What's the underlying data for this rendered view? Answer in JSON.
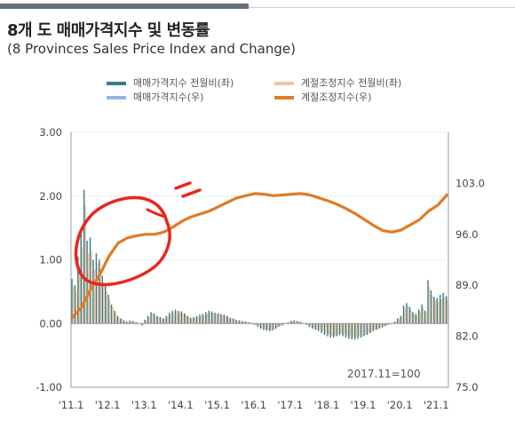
{
  "title": "8개 도 매매가격지수 및 변동률",
  "subtitle": "(8 Provinces Sales Price Index and Change)",
  "colors": {
    "mom_raw": "#3a7d8c",
    "index_raw": "#8fb8e8",
    "mom_sa": "#f3c49b",
    "index_sa": "#e07b26",
    "annotation": "#e8271d"
  },
  "chart_data": {
    "type": "bar+line",
    "legend": [
      {
        "key": "mom_raw",
        "label": "매매가격지수 전월비(좌)"
      },
      {
        "key": "mom_sa",
        "label": "계절조정지수 전월비(좌)"
      },
      {
        "key": "index_raw",
        "label": "매매가격지수(우)"
      },
      {
        "key": "index_sa",
        "label": "계절조정지수(우)"
      }
    ],
    "x_tick_labels": [
      "'11.1",
      "'12.1",
      "'13.1",
      "'14.1",
      "'15.1",
      "'16.1",
      "'17.1",
      "'18.1",
      "'19.1",
      "'20.1",
      "'21.1"
    ],
    "y_left": {
      "ylim": [
        -1.0,
        3.0
      ],
      "ticks": [
        "3.00",
        "2.00",
        "1.00",
        "0.00",
        "-1.00"
      ]
    },
    "y_right": {
      "ylim": [
        75.0,
        110.0
      ],
      "ticks": [
        "103.0",
        "96.0",
        "89.0",
        "82.0",
        "75.0"
      ]
    },
    "note": "2017.11=100",
    "period": {
      "start_year": 2011,
      "start_month": 1,
      "months": 124
    },
    "series": [
      {
        "name": "매매가격지수 전월비(좌)",
        "axis": "left",
        "kind": "bar",
        "values": [
          0.7,
          0.6,
          1.05,
          1.4,
          2.1,
          1.3,
          1.35,
          1.0,
          1.1,
          1.0,
          0.75,
          0.6,
          0.45,
          0.3,
          0.2,
          0.12,
          0.08,
          0.05,
          0.03,
          0.05,
          0.04,
          0.02,
          0.0,
          -0.03,
          0.06,
          0.12,
          0.18,
          0.16,
          0.12,
          0.1,
          0.08,
          0.12,
          0.17,
          0.2,
          0.22,
          0.2,
          0.19,
          0.16,
          0.12,
          0.09,
          0.1,
          0.12,
          0.14,
          0.15,
          0.18,
          0.2,
          0.19,
          0.17,
          0.16,
          0.15,
          0.14,
          0.12,
          0.09,
          0.08,
          0.06,
          0.05,
          0.04,
          0.03,
          0.02,
          0.01,
          -0.02,
          -0.05,
          -0.08,
          -0.1,
          -0.11,
          -0.12,
          -0.11,
          -0.08,
          -0.05,
          -0.03,
          0.0,
          0.02,
          0.04,
          0.05,
          0.04,
          0.03,
          0.01,
          -0.02,
          -0.05,
          -0.08,
          -0.1,
          -0.12,
          -0.15,
          -0.18,
          -0.2,
          -0.22,
          -0.22,
          -0.2,
          -0.18,
          -0.2,
          -0.22,
          -0.24,
          -0.25,
          -0.25,
          -0.24,
          -0.22,
          -0.2,
          -0.18,
          -0.15,
          -0.12,
          -0.1,
          -0.08,
          -0.06,
          -0.04,
          -0.02,
          0.0,
          0.03,
          0.08,
          0.12,
          0.28,
          0.32,
          0.26,
          0.18,
          0.15,
          0.22,
          0.3,
          0.2,
          0.68,
          0.52,
          0.42,
          0.4,
          0.45,
          0.48,
          0.43
        ]
      },
      {
        "name": "계절조정지수 전월비(좌)",
        "axis": "left",
        "kind": "bar",
        "values": [
          0.58,
          0.5,
          0.9,
          1.2,
          1.85,
          1.1,
          1.15,
          0.85,
          0.95,
          0.86,
          0.64,
          0.5,
          0.38,
          0.26,
          0.17,
          0.1,
          0.07,
          0.04,
          0.02,
          0.04,
          0.03,
          0.02,
          0.0,
          -0.02,
          0.05,
          0.1,
          0.15,
          0.14,
          0.1,
          0.09,
          0.07,
          0.1,
          0.14,
          0.17,
          0.19,
          0.17,
          0.16,
          0.14,
          0.1,
          0.08,
          0.09,
          0.1,
          0.12,
          0.13,
          0.15,
          0.17,
          0.16,
          0.15,
          0.14,
          0.13,
          0.12,
          0.1,
          0.08,
          0.07,
          0.05,
          0.04,
          0.03,
          0.03,
          0.02,
          0.01,
          -0.02,
          -0.04,
          -0.07,
          -0.09,
          -0.1,
          -0.1,
          -0.09,
          -0.07,
          -0.04,
          -0.03,
          0.0,
          0.02,
          0.03,
          0.04,
          0.03,
          0.03,
          0.01,
          -0.02,
          -0.04,
          -0.07,
          -0.09,
          -0.1,
          -0.13,
          -0.15,
          -0.17,
          -0.19,
          -0.19,
          -0.17,
          -0.15,
          -0.17,
          -0.19,
          -0.2,
          -0.21,
          -0.21,
          -0.2,
          -0.19,
          -0.17,
          -0.15,
          -0.13,
          -0.1,
          -0.09,
          -0.07,
          -0.05,
          -0.03,
          -0.02,
          0.0,
          0.03,
          0.07,
          0.1,
          0.24,
          0.27,
          0.22,
          0.15,
          0.13,
          0.19,
          0.26,
          0.17,
          0.58,
          0.44,
          0.36,
          0.34,
          0.38,
          0.41,
          0.37
        ]
      },
      {
        "name": "매매가격지수(우)",
        "axis": "right",
        "kind": "line",
        "anchors": [
          [
            0,
            84.6
          ],
          [
            3,
            86.0
          ],
          [
            6,
            88.5
          ],
          [
            9,
            90.5
          ],
          [
            12,
            93.0
          ],
          [
            15,
            94.8
          ],
          [
            18,
            95.5
          ],
          [
            21,
            95.8
          ],
          [
            24,
            96.0
          ],
          [
            27,
            96.0
          ],
          [
            30,
            96.3
          ],
          [
            33,
            97.0
          ],
          [
            36,
            97.8
          ],
          [
            39,
            98.4
          ],
          [
            42,
            98.8
          ],
          [
            45,
            99.2
          ],
          [
            48,
            99.8
          ],
          [
            51,
            100.4
          ],
          [
            54,
            101.0
          ],
          [
            57,
            101.3
          ],
          [
            60,
            101.6
          ],
          [
            63,
            101.5
          ],
          [
            66,
            101.3
          ],
          [
            69,
            101.4
          ],
          [
            72,
            101.5
          ],
          [
            75,
            101.6
          ],
          [
            78,
            101.4
          ],
          [
            81,
            101.0
          ],
          [
            84,
            100.6
          ],
          [
            87,
            100.1
          ],
          [
            90,
            99.5
          ],
          [
            93,
            98.8
          ],
          [
            96,
            98.0
          ],
          [
            99,
            97.2
          ],
          [
            102,
            96.5
          ],
          [
            105,
            96.3
          ],
          [
            108,
            96.6
          ],
          [
            111,
            97.3
          ],
          [
            114,
            98.0
          ],
          [
            117,
            99.2
          ],
          [
            120,
            100.0
          ],
          [
            123,
            101.4
          ]
        ]
      },
      {
        "name": "계절조정지수(우)",
        "axis": "right",
        "kind": "line",
        "anchors": [
          [
            0,
            84.6
          ],
          [
            3,
            86.0
          ],
          [
            6,
            88.5
          ],
          [
            9,
            90.5
          ],
          [
            12,
            93.0
          ],
          [
            15,
            94.8
          ],
          [
            18,
            95.5
          ],
          [
            21,
            95.8
          ],
          [
            24,
            96.0
          ],
          [
            27,
            96.0
          ],
          [
            30,
            96.3
          ],
          [
            33,
            97.0
          ],
          [
            36,
            97.8
          ],
          [
            39,
            98.4
          ],
          [
            42,
            98.8
          ],
          [
            45,
            99.2
          ],
          [
            48,
            99.8
          ],
          [
            51,
            100.4
          ],
          [
            54,
            101.0
          ],
          [
            57,
            101.3
          ],
          [
            60,
            101.6
          ],
          [
            63,
            101.5
          ],
          [
            66,
            101.3
          ],
          [
            69,
            101.4
          ],
          [
            72,
            101.5
          ],
          [
            75,
            101.6
          ],
          [
            78,
            101.4
          ],
          [
            81,
            101.0
          ],
          [
            84,
            100.6
          ],
          [
            87,
            100.1
          ],
          [
            90,
            99.5
          ],
          [
            93,
            98.8
          ],
          [
            96,
            98.0
          ],
          [
            99,
            97.2
          ],
          [
            102,
            96.5
          ],
          [
            105,
            96.3
          ],
          [
            108,
            96.6
          ],
          [
            111,
            97.3
          ],
          [
            114,
            98.0
          ],
          [
            117,
            99.2
          ],
          [
            120,
            100.0
          ],
          [
            123,
            101.4
          ]
        ]
      }
    ]
  }
}
